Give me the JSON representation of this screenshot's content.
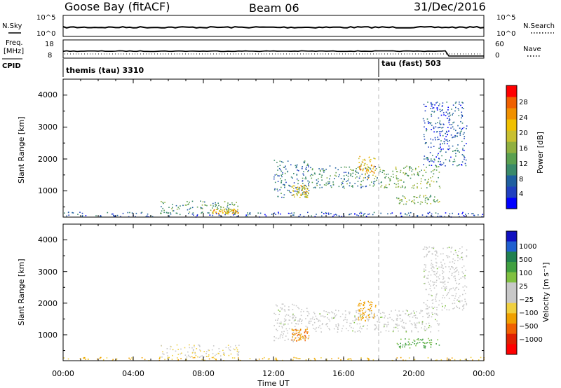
{
  "header": {
    "station": "Goose Bay (fitACF)",
    "beam": "Beam 06",
    "date": "31/Dec/2016"
  },
  "top_panels": {
    "nsky_label": "N.Sky",
    "nsearch_label": "N.Search",
    "nsky_ticks": [
      "10^5",
      "10^0"
    ],
    "nsearch_ticks": [
      "10^5",
      "10^0"
    ],
    "freq_label_line1": "Freq.",
    "freq_label_line2": "[MHz]",
    "freq_ticks": [
      "18",
      "8"
    ],
    "nave_label": "Nave",
    "nave_ticks": [
      "60",
      "0"
    ],
    "cpid_label": "CPID",
    "cpid_modes": [
      {
        "name": "themis (tau) 3310",
        "start_hour": 0
      },
      {
        "name": "tau (fast) 503",
        "start_hour": 18
      }
    ]
  },
  "x_axis": {
    "label": "Time UT",
    "ticks": [
      "00:00",
      "04:00",
      "08:00",
      "12:00",
      "16:00",
      "20:00",
      "00:00"
    ]
  },
  "power_panel": {
    "ylabel": "Slant Range [km]",
    "yticks": [
      "4000",
      "3000",
      "2000",
      "1000"
    ],
    "colorbar_label": "Power [dB]",
    "colorbar_ticks": [
      "28",
      "24",
      "20",
      "16",
      "12",
      "8",
      "4"
    ],
    "colors": [
      "#0000ff",
      "#2040c0",
      "#1f5fa0",
      "#3a8a6a",
      "#5aa050",
      "#90b040",
      "#c8c030",
      "#f0c000",
      "#f09000",
      "#f06000",
      "#ff0000"
    ]
  },
  "velocity_panel": {
    "ylabel": "Slant Range [km]",
    "yticks": [
      "4000",
      "3000",
      "2000",
      "1000"
    ],
    "colorbar_label": "Velocity [m s⁻¹]",
    "colorbar_ticks": [
      "1000",
      "500",
      "100",
      "25",
      "−25",
      "−100",
      "−500",
      "−1000"
    ],
    "colors": [
      "#1010c0",
      "#2060d0",
      "#208050",
      "#40a040",
      "#80c040",
      "#c8c8c8",
      "#c8c8c8",
      "#f0d040",
      "#f0a000",
      "#f06000",
      "#e02000",
      "#ff0000"
    ]
  },
  "chart_data": [
    {
      "type": "heatmap",
      "title": "Goose Bay (fitACF) Beam 06 31/Dec/2016",
      "xlabel": "Time UT",
      "ylabel": "Slant Range [km]",
      "xlim": [
        "00:00",
        "24:00"
      ],
      "ylim": [
        180,
        4500
      ],
      "colorbar": "Power [dB]",
      "clim": [
        0,
        32
      ],
      "echo_regions": [
        {
          "t_start": 0,
          "t_end": 24,
          "range_min": 200,
          "range_max": 350,
          "power_db": 6
        },
        {
          "t_start": 5.5,
          "t_end": 10,
          "range_min": 300,
          "range_max": 700,
          "power_db": 12
        },
        {
          "t_start": 8.5,
          "t_end": 10,
          "range_min": 300,
          "range_max": 450,
          "power_db": 22
        },
        {
          "t_start": 12,
          "t_end": 14,
          "range_min": 800,
          "range_max": 2000,
          "power_db": 8
        },
        {
          "t_start": 13,
          "t_end": 14,
          "range_min": 800,
          "range_max": 1200,
          "power_db": 20
        },
        {
          "t_start": 14,
          "t_end": 18,
          "range_min": 1100,
          "range_max": 1800,
          "power_db": 10
        },
        {
          "t_start": 16.8,
          "t_end": 17.8,
          "range_min": 1400,
          "range_max": 2100,
          "power_db": 22
        },
        {
          "t_start": 18,
          "t_end": 21.5,
          "range_min": 1100,
          "range_max": 1800,
          "power_db": 14
        },
        {
          "t_start": 19,
          "t_end": 21.5,
          "range_min": 600,
          "range_max": 900,
          "power_db": 14
        },
        {
          "t_start": 20.5,
          "t_end": 23,
          "range_min": 1800,
          "range_max": 3800,
          "power_db": 6
        }
      ]
    },
    {
      "type": "heatmap",
      "title": "Goose Bay (fitACF) Beam 06 31/Dec/2016",
      "xlabel": "Time UT",
      "ylabel": "Slant Range [km]",
      "xlim": [
        "00:00",
        "24:00"
      ],
      "ylim": [
        180,
        4500
      ],
      "colorbar": "Velocity [m s⁻¹]",
      "clim": [
        -1000,
        1000
      ],
      "echo_regions": [
        {
          "t_start": 0,
          "t_end": 24,
          "range_min": 200,
          "range_max": 300,
          "velocity": -100
        },
        {
          "t_start": 5.5,
          "t_end": 10,
          "range_min": 300,
          "range_max": 700,
          "velocity": -50
        },
        {
          "t_start": 12,
          "t_end": 14,
          "range_min": 800,
          "range_max": 2000,
          "velocity": 0
        },
        {
          "t_start": 13,
          "t_end": 14,
          "range_min": 800,
          "range_max": 1200,
          "velocity": -300
        },
        {
          "t_start": 14,
          "t_end": 18,
          "range_min": 1100,
          "range_max": 1800,
          "velocity": 0
        },
        {
          "t_start": 16.8,
          "t_end": 17.8,
          "range_min": 1400,
          "range_max": 2100,
          "velocity": -150
        },
        {
          "t_start": 18,
          "t_end": 21.5,
          "range_min": 1100,
          "range_max": 1800,
          "velocity": 0
        },
        {
          "t_start": 19,
          "t_end": 21.5,
          "range_min": 600,
          "range_max": 900,
          "velocity": 60
        },
        {
          "t_start": 20.5,
          "t_end": 23,
          "range_min": 1800,
          "range_max": 3800,
          "velocity": 0
        }
      ]
    }
  ]
}
